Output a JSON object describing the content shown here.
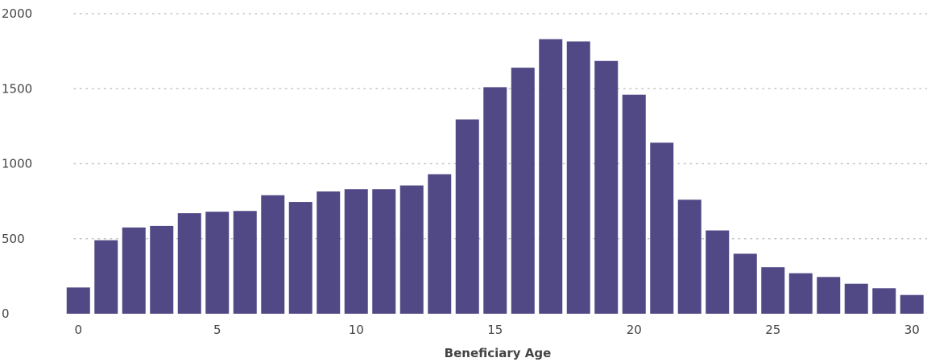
{
  "chart_data": {
    "type": "bar",
    "title": "",
    "xlabel": "Beneficiary Age",
    "ylabel": "",
    "x": [
      0,
      1,
      2,
      3,
      4,
      5,
      6,
      7,
      8,
      9,
      10,
      11,
      12,
      13,
      14,
      15,
      16,
      17,
      18,
      19,
      20,
      21,
      22,
      23,
      24,
      25,
      26,
      27,
      28,
      29,
      30
    ],
    "values": [
      175,
      490,
      575,
      585,
      670,
      680,
      685,
      790,
      745,
      815,
      830,
      830,
      855,
      930,
      1295,
      1510,
      1640,
      1830,
      1815,
      1685,
      1460,
      1140,
      760,
      555,
      400,
      310,
      270,
      245,
      200,
      170,
      125
    ],
    "xticks": [
      "0",
      "5",
      "10",
      "15",
      "20",
      "25",
      "30"
    ],
    "yticks": [
      "0",
      "500",
      "1000",
      "1500",
      "2000"
    ],
    "ylim": [
      0,
      2000
    ],
    "xlim": [
      -0.5,
      30.5
    ],
    "grid": true,
    "bar_color": "#514986",
    "grid_color": "#c4c4c4"
  }
}
